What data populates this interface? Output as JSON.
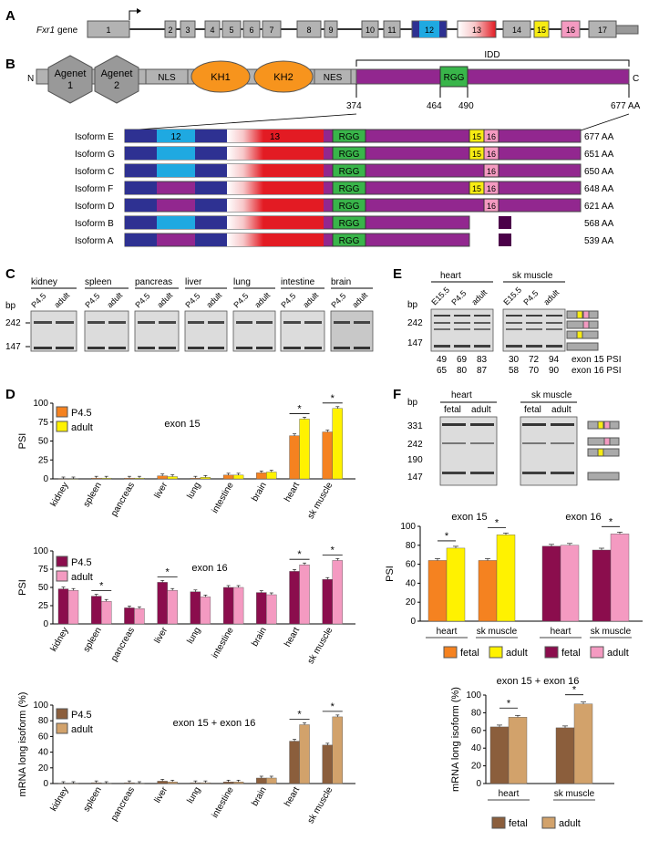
{
  "panel_labels": [
    "A",
    "B",
    "C",
    "D",
    "E",
    "F"
  ],
  "colors": {
    "exon_gray": "#b3b3b3",
    "exon12": "#1fa9e1",
    "exon13": "#e31b23",
    "exon15": "#f7ec13",
    "exon16": "#f49ac1",
    "kh": "#f7941d",
    "idd": "#92278f",
    "rgg": "#39b54a",
    "navy": "#2e3192",
    "dark_purple": "#4b0049",
    "p45": "#f58220",
    "adult15": "#fff200",
    "p45_16": "#8b0d4d",
    "adult16": "#f49ac1",
    "p45_long": "#8b5e3c",
    "adult_long": "#d2a26b"
  },
  "gene": {
    "name": "Fxr1",
    "suffix": " gene",
    "exons": [
      "1",
      "2",
      "3",
      "4",
      "5",
      "6",
      "7",
      "8",
      "9",
      "10",
      "11",
      "12",
      "13",
      "14",
      "15",
      "16",
      "17"
    ]
  },
  "protein": {
    "n": "N",
    "c": "C",
    "domains": [
      {
        "label": "Agenet 1",
        "lines": [
          "Agenet",
          "1"
        ]
      },
      {
        "label": "Agenet 2",
        "lines": [
          "Agenet",
          "2"
        ]
      },
      {
        "label": "NLS"
      },
      {
        "label": "KH1"
      },
      {
        "label": "KH2"
      },
      {
        "label": "NES"
      },
      {
        "label": "RGG"
      }
    ],
    "idd_label": "IDD",
    "positions": [
      "374",
      "464",
      "490",
      "677 AA"
    ]
  },
  "isoforms": [
    {
      "name": "Isoform E",
      "length": "677 AA",
      "e12": true,
      "e15": true,
      "e16": true,
      "alt": false
    },
    {
      "name": "Isoform G",
      "length": "651 AA",
      "e12": true,
      "e15": true,
      "e16": true,
      "alt": false
    },
    {
      "name": "Isoform C",
      "length": "650 AA",
      "e12": true,
      "e15": false,
      "e16": true,
      "alt": false
    },
    {
      "name": "Isoform F",
      "length": "648 AA",
      "e12": false,
      "e15": true,
      "e16": true,
      "alt": false
    },
    {
      "name": "Isoform D",
      "length": "621 AA",
      "e12": false,
      "e15": false,
      "e16": true,
      "alt": false
    },
    {
      "name": "Isoform B",
      "length": "568 AA",
      "e12": true,
      "e15": false,
      "e16": false,
      "alt": true
    },
    {
      "name": "Isoform A",
      "length": "539 AA",
      "e12": false,
      "e15": false,
      "e16": false,
      "alt": true
    }
  ],
  "isoform_labels": {
    "e12": "12",
    "e13": "13",
    "rgg": "RGG",
    "e15": "15",
    "e16": "16"
  },
  "panel_c": {
    "bp": "bp",
    "markers": [
      "242",
      "147"
    ],
    "tissues": [
      "kidney",
      "spleen",
      "pancreas",
      "liver",
      "lung",
      "intestine",
      "brain"
    ],
    "lanes": [
      "P4.5",
      "adult"
    ]
  },
  "panel_e": {
    "bp": "bp",
    "markers": [
      "242",
      "147"
    ],
    "tissues": [
      "heart",
      "sk muscle"
    ],
    "lanes": [
      "E15.5",
      "P4.5",
      "adult"
    ],
    "psi15": [
      "49",
      "69",
      "83",
      "30",
      "72",
      "94"
    ],
    "psi16": [
      "65",
      "80",
      "87",
      "58",
      "70",
      "90"
    ],
    "row_labels": [
      "exon 15 PSI",
      "exon 16 PSI"
    ]
  },
  "panel_f_gel": {
    "bp": "bp",
    "markers": [
      "331",
      "242",
      "190",
      "147"
    ],
    "tissues": [
      "heart",
      "sk muscle"
    ],
    "lanes": [
      "fetal",
      "adult"
    ]
  },
  "chart_data": [
    {
      "type": "bar",
      "title": "exon 15",
      "ylabel": "PSI",
      "ylim": [
        0,
        100
      ],
      "yticks": [
        0,
        25,
        50,
        75,
        100
      ],
      "categories": [
        "kidney",
        "spleen",
        "pancreas",
        "liver",
        "lung",
        "intestine",
        "brain",
        "heart",
        "sk muscle"
      ],
      "series": [
        {
          "name": "P4.5",
          "values": [
            0,
            1,
            1,
            4,
            1,
            5,
            8,
            57,
            62
          ]
        },
        {
          "name": "adult",
          "values": [
            0,
            1,
            1,
            3,
            2,
            5,
            9,
            79,
            93
          ]
        }
      ],
      "significant": [
        "heart",
        "sk muscle"
      ],
      "star": "*"
    },
    {
      "type": "bar",
      "title": "exon 16",
      "ylabel": "PSI",
      "ylim": [
        0,
        100
      ],
      "yticks": [
        0,
        25,
        50,
        75,
        100
      ],
      "categories": [
        "kidney",
        "spleen",
        "pancreas",
        "liver",
        "lung",
        "intestine",
        "brain",
        "heart",
        "sk muscle"
      ],
      "series": [
        {
          "name": "P4.5",
          "values": [
            48,
            38,
            22,
            57,
            44,
            50,
            43,
            72,
            61
          ]
        },
        {
          "name": "adult",
          "values": [
            46,
            31,
            21,
            46,
            37,
            50,
            40,
            81,
            87
          ]
        }
      ],
      "significant": [
        "spleen",
        "liver",
        "heart",
        "sk muscle"
      ],
      "star": "*"
    },
    {
      "type": "bar",
      "title": "exon 15 + exon 16",
      "ylabel": "mRNA long isoform (%)",
      "ylim": [
        0,
        100
      ],
      "yticks": [
        0,
        20,
        40,
        60,
        80,
        100
      ],
      "categories": [
        "kidney",
        "spleen",
        "pancreas",
        "liver",
        "lung",
        "intestine",
        "brain",
        "heart",
        "sk muscle"
      ],
      "series": [
        {
          "name": "P4.5",
          "values": [
            0,
            1,
            1,
            3,
            1,
            2,
            7,
            54,
            49
          ]
        },
        {
          "name": "adult",
          "values": [
            0,
            0,
            0,
            2,
            1,
            2,
            7,
            75,
            85
          ]
        }
      ],
      "significant": [
        "heart",
        "sk muscle"
      ],
      "star": "*"
    },
    {
      "type": "bar",
      "ylabel": "PSI",
      "ylim": [
        0,
        100
      ],
      "yticks": [
        0,
        20,
        40,
        60,
        80,
        100
      ],
      "groups": [
        {
          "title": "exon 15",
          "categories": [
            "heart",
            "sk muscle"
          ],
          "series": [
            {
              "name": "fetal",
              "values": [
                64,
                64
              ]
            },
            {
              "name": "adult",
              "values": [
                77,
                91
              ]
            }
          ],
          "significant": [
            "heart",
            "sk muscle"
          ]
        },
        {
          "title": "exon 16",
          "categories": [
            "heart",
            "sk muscle"
          ],
          "series": [
            {
              "name": "fetal",
              "values": [
                79,
                75
              ]
            },
            {
              "name": "adult",
              "values": [
                80,
                92
              ]
            }
          ],
          "significant": [
            "sk muscle"
          ]
        }
      ],
      "star": "*"
    },
    {
      "type": "bar",
      "title": "exon 15 + exon 16",
      "ylabel": "mRNA long isoform (%)",
      "ylim": [
        0,
        100
      ],
      "yticks": [
        0,
        20,
        40,
        60,
        80,
        100
      ],
      "categories": [
        "heart",
        "sk muscle"
      ],
      "series": [
        {
          "name": "fetal",
          "values": [
            64,
            63
          ]
        },
        {
          "name": "adult",
          "values": [
            75,
            90
          ]
        }
      ],
      "significant": [
        "heart",
        "sk muscle"
      ],
      "star": "*"
    }
  ],
  "legend_d": [
    "P4.5",
    "adult"
  ],
  "legend_f": [
    "fetal",
    "adult"
  ]
}
